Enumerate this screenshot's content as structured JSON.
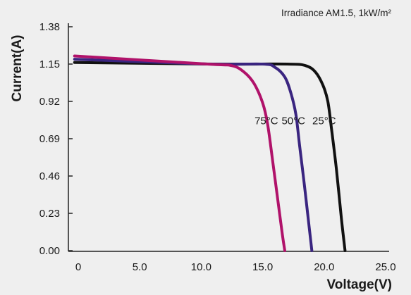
{
  "chart_data": {
    "type": "line",
    "title": "",
    "annotation": "Irradiance AM1.5, 1kW/m²",
    "xlabel": "Voltage(V)",
    "ylabel": "Current(A)",
    "xlim": [
      0,
      25
    ],
    "ylim": [
      0,
      1.38
    ],
    "x_ticks": [
      0,
      5,
      10,
      15,
      20,
      25
    ],
    "x_tick_labels": [
      "0",
      "5.0",
      "10.0",
      "15.0",
      "20.0",
      "25.0"
    ],
    "y_ticks": [
      0,
      0.23,
      0.46,
      0.69,
      0.92,
      1.15,
      1.38
    ],
    "y_tick_labels": [
      "0.00",
      "0.23",
      "0.46",
      "0.69",
      "0.92",
      "1.15",
      "1.38"
    ],
    "grid": false,
    "series": [
      {
        "name": "25°C",
        "color": "#111111",
        "points": [
          [
            -0.3,
            1.16
          ],
          [
            11,
            1.15
          ],
          [
            17,
            1.15
          ],
          [
            18.5,
            1.14
          ],
          [
            19.3,
            1.1
          ],
          [
            19.9,
            1.02
          ],
          [
            20.3,
            0.92
          ],
          [
            20.6,
            0.75
          ],
          [
            21.0,
            0.5
          ],
          [
            21.4,
            0.2
          ],
          [
            21.7,
            0.0
          ]
        ]
      },
      {
        "name": "50°C",
        "color": "#3a2580",
        "points": [
          [
            -0.3,
            1.18
          ],
          [
            10.5,
            1.15
          ],
          [
            15,
            1.15
          ],
          [
            16,
            1.13
          ],
          [
            16.8,
            1.07
          ],
          [
            17.3,
            0.97
          ],
          [
            17.7,
            0.84
          ],
          [
            18.0,
            0.65
          ],
          [
            18.4,
            0.4
          ],
          [
            18.7,
            0.2
          ],
          [
            19.0,
            0.0
          ]
        ]
      },
      {
        "name": "75°C",
        "color": "#b0126a",
        "points": [
          [
            -0.3,
            1.2
          ],
          [
            10.5,
            1.15
          ],
          [
            12.5,
            1.14
          ],
          [
            13.5,
            1.1
          ],
          [
            14.3,
            1.03
          ],
          [
            15.0,
            0.91
          ],
          [
            15.4,
            0.78
          ],
          [
            15.8,
            0.56
          ],
          [
            16.2,
            0.33
          ],
          [
            16.6,
            0.1
          ],
          [
            16.8,
            0.0
          ]
        ]
      }
    ],
    "curve_labels": [
      {
        "text": "75°C",
        "x": 15.3,
        "y": 0.78
      },
      {
        "text": "50°C",
        "x": 17.5,
        "y": 0.78
      },
      {
        "text": "25°C",
        "x": 20.0,
        "y": 0.78
      }
    ]
  }
}
